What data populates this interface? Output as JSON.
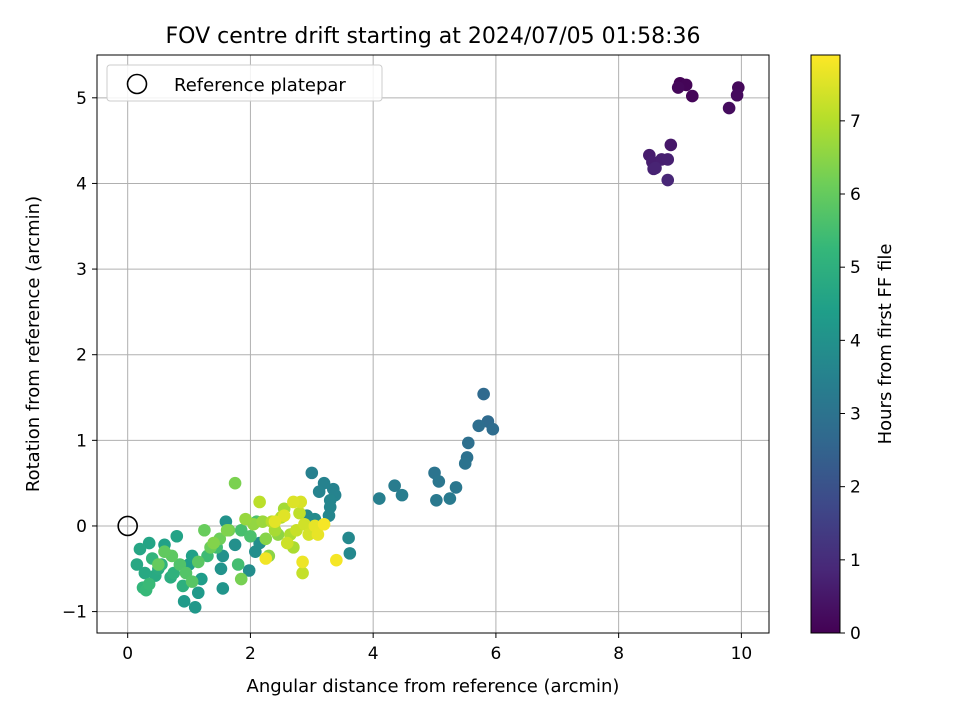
{
  "chart_data": {
    "type": "scatter",
    "title": "FOV centre drift starting at 2024/07/05 01:58:36",
    "xlabel": "Angular distance from reference (arcmin)",
    "ylabel": "Rotation from reference (arcmin)",
    "xlim": [
      -0.5,
      10.45
    ],
    "ylim": [
      -1.25,
      5.5
    ],
    "x_ticks": [
      0,
      2,
      4,
      6,
      8,
      10
    ],
    "y_ticks": [
      -1,
      0,
      1,
      2,
      3,
      4,
      5
    ],
    "x_tick_labels": [
      "0",
      "2",
      "4",
      "6",
      "8",
      "10"
    ],
    "y_tick_labels": [
      "−1",
      "0",
      "1",
      "2",
      "3",
      "4",
      "5"
    ],
    "grid": true,
    "legend": {
      "placement": "upper-left",
      "entries": [
        "Reference platepar"
      ]
    },
    "reference_point": {
      "label": "Reference platepar",
      "x": 0,
      "y": 0,
      "marker": "open-circle"
    },
    "colorbar": {
      "label": "Hours from first FF file",
      "range": [
        0,
        7.9
      ],
      "ticks": [
        0,
        1,
        2,
        3,
        4,
        5,
        6,
        7
      ],
      "tick_labels": [
        "0",
        "1",
        "2",
        "3",
        "4",
        "5",
        "6",
        "7"
      ],
      "colormap": "viridis",
      "colormap_stops": [
        "#440154",
        "#482878",
        "#3e4989",
        "#31688e",
        "#26828e",
        "#1f9e89",
        "#35b779",
        "#6ece58",
        "#b5de2b",
        "#fde725"
      ]
    },
    "series": [
      {
        "points": [
          [
            9.0,
            5.17,
            0.05
          ],
          [
            9.1,
            5.15,
            0.08
          ],
          [
            9.2,
            5.02,
            0.12
          ],
          [
            8.97,
            5.12,
            0.15
          ],
          [
            9.95,
            5.12,
            0.18
          ],
          [
            9.93,
            5.03,
            0.22
          ],
          [
            9.8,
            4.88,
            0.25
          ],
          [
            8.85,
            4.45,
            0.5
          ],
          [
            8.5,
            4.33,
            0.6
          ],
          [
            8.55,
            4.25,
            0.65
          ],
          [
            8.7,
            4.28,
            0.68
          ],
          [
            8.8,
            4.28,
            0.7
          ],
          [
            8.57,
            4.17,
            0.75
          ],
          [
            8.6,
            4.18,
            0.78
          ],
          [
            8.8,
            4.04,
            0.85
          ],
          [
            5.8,
            1.54,
            2.7
          ],
          [
            5.87,
            1.22,
            2.75
          ],
          [
            5.95,
            1.13,
            2.8
          ],
          [
            5.72,
            1.17,
            2.85
          ],
          [
            5.55,
            0.97,
            2.9
          ],
          [
            5.53,
            0.8,
            2.95
          ],
          [
            5.5,
            0.73,
            3.0
          ],
          [
            5.0,
            0.62,
            3.05
          ],
          [
            5.07,
            0.52,
            3.1
          ],
          [
            5.35,
            0.45,
            3.15
          ],
          [
            5.03,
            0.3,
            3.2
          ],
          [
            5.25,
            0.32,
            3.25
          ],
          [
            4.35,
            0.47,
            3.3
          ],
          [
            4.47,
            0.36,
            3.35
          ],
          [
            4.1,
            0.32,
            3.4
          ],
          [
            3.0,
            0.62,
            3.45
          ],
          [
            3.2,
            0.5,
            3.5
          ],
          [
            3.35,
            0.43,
            3.5
          ],
          [
            3.38,
            0.36,
            3.55
          ],
          [
            3.12,
            0.4,
            3.55
          ],
          [
            3.3,
            0.3,
            3.6
          ],
          [
            3.3,
            0.22,
            3.6
          ],
          [
            3.28,
            0.12,
            3.65
          ],
          [
            3.6,
            -0.14,
            3.7
          ],
          [
            3.62,
            -0.32,
            3.7
          ],
          [
            2.92,
            0.12,
            3.75
          ],
          [
            3.05,
            0.08,
            3.8
          ],
          [
            1.98,
            -0.52,
            3.85
          ],
          [
            2.08,
            -0.3,
            3.9
          ],
          [
            2.15,
            -0.2,
            3.9
          ],
          [
            1.75,
            -0.22,
            3.95
          ],
          [
            1.6,
            0.05,
            4.0
          ],
          [
            1.55,
            -0.35,
            4.0
          ],
          [
            1.52,
            -0.5,
            4.05
          ],
          [
            1.55,
            -0.73,
            4.1
          ],
          [
            1.1,
            -0.95,
            4.2
          ],
          [
            1.15,
            -0.78,
            4.25
          ],
          [
            0.92,
            -0.88,
            4.3
          ],
          [
            1.2,
            -0.62,
            4.35
          ],
          [
            1.0,
            -0.45,
            4.4
          ],
          [
            1.05,
            -0.35,
            4.45
          ],
          [
            0.6,
            -0.22,
            4.5
          ],
          [
            0.8,
            -0.12,
            4.55
          ],
          [
            0.35,
            -0.2,
            4.6
          ],
          [
            0.2,
            -0.27,
            4.65
          ],
          [
            0.15,
            -0.45,
            4.7
          ],
          [
            0.28,
            -0.55,
            4.75
          ],
          [
            0.45,
            -0.58,
            4.8
          ],
          [
            0.5,
            -0.5,
            4.85
          ],
          [
            0.7,
            -0.6,
            4.9
          ],
          [
            0.9,
            -0.7,
            5.0
          ],
          [
            0.75,
            -0.55,
            5.05
          ],
          [
            0.55,
            -0.45,
            5.1
          ],
          [
            0.4,
            -0.38,
            5.15
          ],
          [
            0.25,
            -0.72,
            5.2
          ],
          [
            0.3,
            -0.75,
            5.3
          ],
          [
            0.35,
            -0.68,
            5.35
          ],
          [
            1.3,
            -0.35,
            5.4
          ],
          [
            1.45,
            -0.25,
            5.45
          ],
          [
            1.8,
            -0.45,
            5.5
          ],
          [
            1.85,
            -0.05,
            5.55
          ],
          [
            2.0,
            -0.12,
            5.6
          ],
          [
            2.1,
            0.05,
            5.65
          ],
          [
            0.85,
            -0.45,
            5.7
          ],
          [
            0.95,
            -0.55,
            5.75
          ],
          [
            1.05,
            -0.65,
            5.8
          ],
          [
            1.15,
            -0.42,
            5.85
          ],
          [
            0.72,
            -0.35,
            5.9
          ],
          [
            0.6,
            -0.3,
            5.95
          ],
          [
            0.5,
            -0.45,
            6.0
          ],
          [
            1.25,
            -0.05,
            6.05
          ],
          [
            1.35,
            -0.25,
            6.1
          ],
          [
            1.5,
            -0.15,
            6.15
          ],
          [
            1.65,
            -0.05,
            6.2
          ],
          [
            1.85,
            -0.62,
            6.25
          ],
          [
            1.75,
            0.5,
            6.3
          ],
          [
            1.62,
            -0.05,
            6.35
          ],
          [
            1.4,
            -0.2,
            6.4
          ],
          [
            2.25,
            -0.15,
            6.45
          ],
          [
            2.3,
            -0.35,
            6.5
          ],
          [
            2.45,
            -0.1,
            6.55
          ],
          [
            2.05,
            0.02,
            6.6
          ],
          [
            1.92,
            0.08,
            6.65
          ],
          [
            2.2,
            0.05,
            6.7
          ],
          [
            2.55,
            0.2,
            6.8
          ],
          [
            2.4,
            -0.05,
            6.85
          ],
          [
            2.7,
            -0.25,
            6.9
          ],
          [
            2.65,
            -0.1,
            6.95
          ],
          [
            2.5,
            0.1,
            7.0
          ],
          [
            2.35,
            0.05,
            7.05
          ],
          [
            2.15,
            0.28,
            7.1
          ],
          [
            2.8,
            0.15,
            7.15
          ],
          [
            2.85,
            -0.55,
            7.2
          ],
          [
            2.75,
            -0.05,
            7.25
          ],
          [
            2.6,
            -0.2,
            7.3
          ],
          [
            2.88,
            0.02,
            7.35
          ],
          [
            2.95,
            -0.1,
            7.4
          ],
          [
            2.82,
            0.28,
            7.45
          ],
          [
            2.7,
            0.28,
            7.5
          ],
          [
            2.55,
            0.12,
            7.55
          ],
          [
            2.4,
            0.05,
            7.6
          ],
          [
            3.05,
            0.0,
            7.62
          ],
          [
            3.1,
            -0.1,
            7.65
          ],
          [
            2.85,
            -0.42,
            7.7
          ],
          [
            2.25,
            -0.38,
            7.75
          ],
          [
            3.4,
            -0.4,
            7.8
          ],
          [
            3.2,
            0.02,
            7.82
          ]
        ]
      }
    ]
  }
}
